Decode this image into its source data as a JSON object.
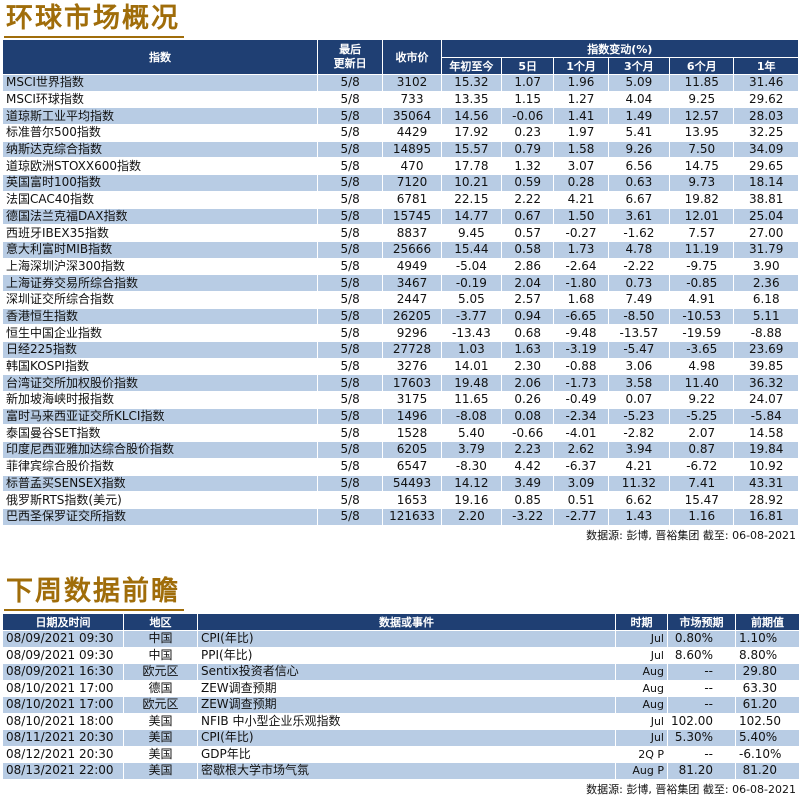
{
  "section1": {
    "title": "环球市场概况",
    "headers": {
      "index": "指数",
      "last_update": "最后\n更新日",
      "close": "收市价",
      "change_group": "指数变动(%)",
      "ytd": "年初至今",
      "d5": "5日",
      "m1": "1个月",
      "m3": "3个月",
      "m6": "6个月",
      "y1": "1年"
    },
    "rows": [
      [
        "MSCI世界指数",
        "5/8",
        "3102",
        "15.32",
        "1.07",
        "1.96",
        "5.09",
        "11.85",
        "31.46"
      ],
      [
        "MSCI环球指数",
        "5/8",
        "733",
        "13.35",
        "1.15",
        "1.27",
        "4.04",
        "9.25",
        "29.62"
      ],
      [
        "道琼斯工业平均指数",
        "5/8",
        "35064",
        "14.56",
        "-0.06",
        "1.41",
        "1.49",
        "12.57",
        "28.03"
      ],
      [
        "标准普尔500指数",
        "5/8",
        "4429",
        "17.92",
        "0.23",
        "1.97",
        "5.41",
        "13.95",
        "32.25"
      ],
      [
        "纳斯达克综合指数",
        "5/8",
        "14895",
        "15.57",
        "0.79",
        "1.58",
        "9.26",
        "7.50",
        "34.09"
      ],
      [
        "道琼欧洲STOXX600指数",
        "5/8",
        "470",
        "17.78",
        "1.32",
        "3.07",
        "6.56",
        "14.75",
        "29.65"
      ],
      [
        "英国富时100指数",
        "5/8",
        "7120",
        "10.21",
        "0.59",
        "0.28",
        "0.63",
        "9.73",
        "18.14"
      ],
      [
        "法国CAC40指数",
        "5/8",
        "6781",
        "22.15",
        "2.22",
        "4.21",
        "6.67",
        "19.82",
        "38.81"
      ],
      [
        "德国法兰克福DAX指数",
        "5/8",
        "15745",
        "14.77",
        "0.67",
        "1.50",
        "3.61",
        "12.01",
        "25.04"
      ],
      [
        "西班牙IBEX35指数",
        "5/8",
        "8837",
        "9.45",
        "0.57",
        "-0.27",
        "-1.62",
        "7.57",
        "27.00"
      ],
      [
        "意大利富时MIB指数",
        "5/8",
        "25666",
        "15.44",
        "0.58",
        "1.73",
        "4.78",
        "11.19",
        "31.79"
      ],
      [
        "上海深圳沪深300指数",
        "5/8",
        "4949",
        "-5.04",
        "2.86",
        "-2.64",
        "-2.22",
        "-9.75",
        "3.90"
      ],
      [
        "上海证券交易所综合指数",
        "5/8",
        "3467",
        "-0.19",
        "2.04",
        "-1.80",
        "0.73",
        "-0.85",
        "2.36"
      ],
      [
        "深圳证交所综合指数",
        "5/8",
        "2447",
        "5.05",
        "2.57",
        "1.68",
        "7.49",
        "4.91",
        "6.18"
      ],
      [
        "香港恒生指数",
        "5/8",
        "26205",
        "-3.77",
        "0.94",
        "-6.65",
        "-8.50",
        "-10.53",
        "5.11"
      ],
      [
        "恒生中国企业指数",
        "5/8",
        "9296",
        "-13.43",
        "0.68",
        "-9.48",
        "-13.57",
        "-19.59",
        "-8.88"
      ],
      [
        "日经225指数",
        "5/8",
        "27728",
        "1.03",
        "1.63",
        "-3.19",
        "-5.47",
        "-3.65",
        "23.69"
      ],
      [
        "韩国KOSPI指数",
        "5/8",
        "3276",
        "14.01",
        "2.30",
        "-0.88",
        "3.06",
        "4.98",
        "39.85"
      ],
      [
        "台湾证交所加权股价指数",
        "5/8",
        "17603",
        "19.48",
        "2.06",
        "-1.73",
        "3.58",
        "11.40",
        "36.32"
      ],
      [
        "新加坡海峡时报指数",
        "5/8",
        "3175",
        "11.65",
        "0.26",
        "-0.49",
        "0.07",
        "9.22",
        "24.07"
      ],
      [
        "富时马来西亚证交所KLCI指数",
        "5/8",
        "1496",
        "-8.08",
        "0.08",
        "-2.34",
        "-5.23",
        "-5.25",
        "-5.84"
      ],
      [
        "泰国曼谷SET指数",
        "5/8",
        "1528",
        "5.40",
        "-0.66",
        "-4.01",
        "-2.82",
        "2.07",
        "14.58"
      ],
      [
        "印度尼西亚雅加达综合股价指数",
        "5/8",
        "6205",
        "3.79",
        "2.23",
        "2.62",
        "3.94",
        "0.87",
        "19.84"
      ],
      [
        "菲律宾综合股价指数",
        "5/8",
        "6547",
        "-8.30",
        "4.42",
        "-6.37",
        "4.21",
        "-6.72",
        "10.92"
      ],
      [
        "标普孟买SENSEX指数",
        "5/8",
        "54493",
        "14.12",
        "3.49",
        "3.09",
        "11.32",
        "7.41",
        "43.31"
      ],
      [
        "俄罗斯RTS指数(美元)",
        "5/8",
        "1653",
        "19.16",
        "0.85",
        "0.51",
        "6.62",
        "15.47",
        "28.92"
      ],
      [
        "巴西圣保罗证交所指数",
        "5/8",
        "121633",
        "2.20",
        "-3.22",
        "-2.77",
        "1.43",
        "1.16",
        "16.81"
      ]
    ],
    "source": "数据源: 彭博, 晋裕集团 截至: 06-08-2021"
  },
  "section2": {
    "title": "下周数据前瞻",
    "headers": {
      "datetime": "日期及时间",
      "region": "地区",
      "event": "数据或事件",
      "period": "时期",
      "forecast": "市场预期",
      "previous": "前期值"
    },
    "rows": [
      [
        "08/09/2021 09:30",
        "中国",
        "CPI(年比)",
        "Jul",
        "0.80%",
        "1.10%"
      ],
      [
        "08/09/2021 09:30",
        "中国",
        "PPI(年比)",
        "Jul",
        "8.60%",
        "8.80%"
      ],
      [
        "08/09/2021 16:30",
        "欧元区",
        "Sentix投资者信心",
        "Aug",
        "--",
        "29.80"
      ],
      [
        "08/10/2021 17:00",
        "德国",
        "ZEW调查预期",
        "Aug",
        "--",
        "63.30"
      ],
      [
        "08/10/2021 17:00",
        "欧元区",
        "ZEW调查预期",
        "Aug",
        "--",
        "61.20"
      ],
      [
        "08/10/2021 18:00",
        "美国",
        "NFIB 中小型企业乐观指数",
        "Jul",
        "102.00",
        "102.50"
      ],
      [
        "08/11/2021 20:30",
        "美国",
        "CPI(年比)",
        "Jul",
        "5.30%",
        "5.40%"
      ],
      [
        "08/12/2021 20:30",
        "美国",
        "GDP年比",
        "2Q P",
        "--",
        "-6.10%"
      ],
      [
        "08/13/2021 22:00",
        "美国",
        "密歇根大学市场气氛",
        "Aug P",
        "81.20",
        "81.20"
      ]
    ],
    "source": "数据源: 彭博, 晋裕集团 截至: 06-08-2021"
  },
  "colors": {
    "title": "#a06d0a",
    "header_bg": "#1f3f73",
    "row_stripe": "#b8cce4"
  }
}
